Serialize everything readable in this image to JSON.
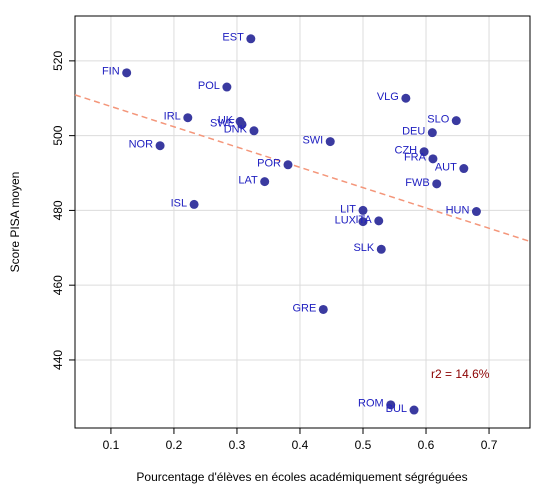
{
  "chart_data": {
    "type": "scatter",
    "xlabel": "Pourcentage d'élèves en écoles académiquement ségréguées",
    "ylabel": "Score PISA moyen",
    "annotation": "r2 = 14.6%",
    "annotation_position": [
      0.608,
      436
    ],
    "labels": [
      "FIN",
      "EST",
      "POL",
      "IRL",
      "NOR",
      "UK",
      "SWE",
      "DNK",
      "SWI",
      "POR",
      "LAT",
      "ISL",
      "VLG",
      "SLO",
      "DEU",
      "CZH",
      "FRA",
      "AUT",
      "FWB",
      "HUN",
      "LIT",
      "LUX",
      "ITA",
      "SLK",
      "GRE",
      "ROM",
      "BUL"
    ],
    "x": [
      0.125,
      0.322,
      0.284,
      0.222,
      0.178,
      0.305,
      0.308,
      0.327,
      0.448,
      0.381,
      0.344,
      0.232,
      0.568,
      0.648,
      0.61,
      0.597,
      0.611,
      0.66,
      0.617,
      0.68,
      0.5,
      0.5,
      0.525,
      0.529,
      0.437,
      0.544,
      0.581
    ],
    "y": [
      516.8,
      525.9,
      513.0,
      504.8,
      497.3,
      503.8,
      503.0,
      501.3,
      498.4,
      492.2,
      487.7,
      481.6,
      510.0,
      504.0,
      500.8,
      495.7,
      493.8,
      491.2,
      487.1,
      479.7,
      480.0,
      477.0,
      477.2,
      469.6,
      453.5,
      428.0,
      426.6
    ],
    "color": "#3a3aa0",
    "label_color": "#2020c0",
    "trend": {
      "x": [
        0.043,
        0.765
      ],
      "y": [
        510.9,
        471.7
      ],
      "color": "#f4967a"
    },
    "xlim": [
      0.043,
      0.765
    ],
    "ylim": [
      421.8,
      532
    ],
    "xticks": [
      0.1,
      0.2,
      0.3,
      0.4,
      0.5,
      0.6,
      0.7
    ],
    "yticks": [
      440,
      460,
      480,
      500,
      520
    ],
    "grid": true
  }
}
